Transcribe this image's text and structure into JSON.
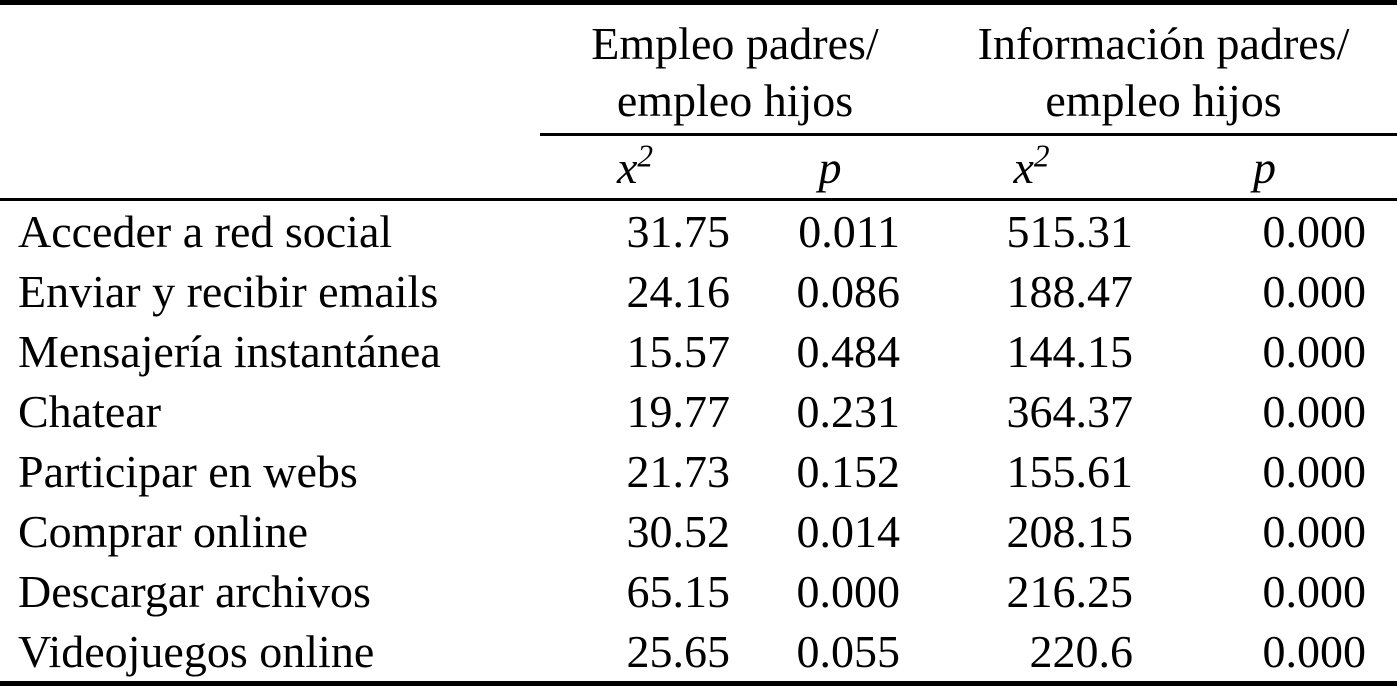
{
  "table": {
    "colors": {
      "text": "#000000",
      "background": "#ffffff",
      "rule": "#000000"
    },
    "groups": [
      {
        "label": "Empleo padres/\nempleo hijos"
      },
      {
        "label": "Información padres/\nempleo hijos"
      }
    ],
    "subheaders": [
      {
        "base": "x",
        "sup": "2"
      },
      {
        "base": "p",
        "sup": ""
      },
      {
        "base": "x",
        "sup": "2"
      },
      {
        "base": "p",
        "sup": ""
      }
    ],
    "rows": [
      {
        "label": "Acceder a red social",
        "chi1": "31.75",
        "p1": "0.011",
        "chi2": "515.31",
        "p2": "0.000"
      },
      {
        "label": "Enviar y recibir emails",
        "chi1": "24.16",
        "p1": "0.086",
        "chi2": "188.47",
        "p2": "0.000"
      },
      {
        "label": "Mensajería instantánea",
        "chi1": "15.57",
        "p1": "0.484",
        "chi2": "144.15",
        "p2": "0.000"
      },
      {
        "label": "Chatear",
        "chi1": "19.77",
        "p1": "0.231",
        "chi2": "364.37",
        "p2": "0.000"
      },
      {
        "label": "Participar en webs",
        "chi1": "21.73",
        "p1": "0.152",
        "chi2": "155.61",
        "p2": "0.000"
      },
      {
        "label": "Comprar online",
        "chi1": "30.52",
        "p1": "0.014",
        "chi2": "208.15",
        "p2": "0.000"
      },
      {
        "label": "Descargar archivos",
        "chi1": "65.15",
        "p1": "0.000",
        "chi2": "216.25",
        "p2": "0.000"
      },
      {
        "label": "Videojuegos online",
        "chi1": "25.65",
        "p1": "0.055",
        "chi2": "220.6",
        "p2": "0.000"
      }
    ]
  }
}
